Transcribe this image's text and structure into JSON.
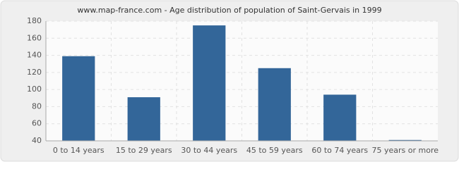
{
  "chart_data": {
    "type": "bar",
    "title": "www.map-france.com - Age distribution of population of Saint-Gervais in 1999",
    "categories": [
      "0 to 14 years",
      "15 to 29 years",
      "30 to 44 years",
      "45 to 59 years",
      "60 to 74 years",
      "75 years or more"
    ],
    "values": [
      139,
      91,
      175,
      125,
      94,
      41
    ],
    "color": "#336699",
    "ylim": [
      40,
      180
    ],
    "yticks": [
      40,
      60,
      80,
      100,
      120,
      140,
      160,
      180
    ],
    "grid": true
  }
}
